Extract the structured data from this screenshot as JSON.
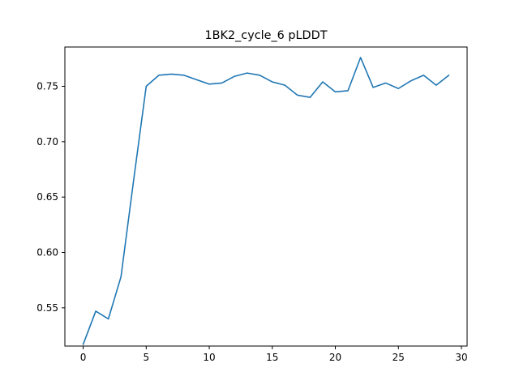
{
  "chart_data": {
    "type": "line",
    "title": "1BK2_cycle_6 pLDDT",
    "xlabel": "",
    "ylabel": "",
    "xlim": [
      -1.45,
      30.45
    ],
    "ylim": [
      0.5155,
      0.7855
    ],
    "xticks": [
      0,
      5,
      10,
      15,
      20,
      25,
      30
    ],
    "xtick_labels": [
      "0",
      "5",
      "10",
      "15",
      "20",
      "25",
      "30"
    ],
    "yticks": [
      0.55,
      0.6,
      0.65,
      0.7,
      0.75
    ],
    "ytick_labels": [
      "0.55",
      "0.60",
      "0.65",
      "0.70",
      "0.75"
    ],
    "grid": false,
    "series": [
      {
        "color": "#1f77b4",
        "x": [
          0,
          1,
          2,
          3,
          4,
          5,
          6,
          7,
          8,
          9,
          10,
          11,
          12,
          13,
          14,
          15,
          16,
          17,
          18,
          19,
          20,
          21,
          22,
          23,
          24,
          25,
          26,
          27,
          28,
          29
        ],
        "values": [
          0.517,
          0.547,
          0.54,
          0.578,
          0.665,
          0.75,
          0.76,
          0.761,
          0.76,
          0.756,
          0.752,
          0.753,
          0.759,
          0.762,
          0.76,
          0.754,
          0.751,
          0.742,
          0.74,
          0.754,
          0.745,
          0.746,
          0.776,
          0.749,
          0.753,
          0.748,
          0.755,
          0.76,
          0.751,
          0.76
        ]
      }
    ]
  }
}
